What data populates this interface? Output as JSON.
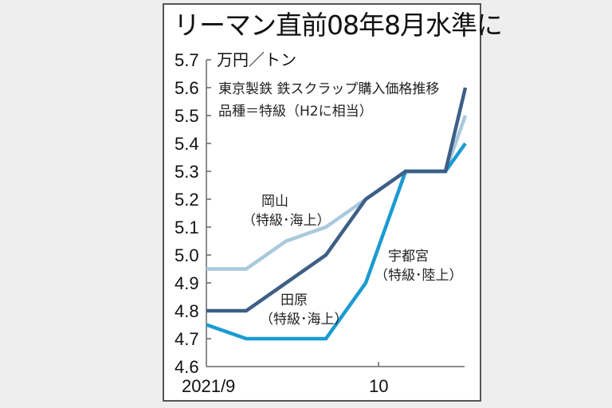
{
  "title": "リーマン直前08年8月水準に",
  "unit_label": "万円／トン",
  "note_line1": "東京製鉄 鉄スクラップ購入価格推移",
  "note_line2": "品種＝特級（H2に相当）",
  "series_labels": {
    "okayama_name": "岡山",
    "okayama_sub": "（特級･海上）",
    "tahara_name": "田原",
    "tahara_sub": "（特級･海上）",
    "utsunomiya_name": "宇都宮",
    "utsunomiya_sub": "（特級･陸上）"
  },
  "x_tick_labels": [
    "2021/9",
    "10"
  ],
  "y_tick_labels": [
    "5.7",
    "5.6",
    "5.5",
    "5.4",
    "5.3",
    "5.2",
    "5.1",
    "5.0",
    "4.9",
    "4.8",
    "4.7",
    "4.6"
  ],
  "colors": {
    "okayama": "#a9c9dc",
    "tahara": "#3e5f86",
    "utsunomiya": "#1a9bd1",
    "axis": "#666666",
    "frame": "#555555",
    "background": "#eeeeee"
  },
  "chart_data": {
    "type": "line",
    "title": "リーマン直前08年8月水準に",
    "subtitle": "東京製鉄 鉄スクラップ購入価格推移 品種＝特級（H2に相当）",
    "xlabel": "",
    "ylabel": "万円／トン",
    "ylim": [
      4.6,
      5.7
    ],
    "yticks": [
      4.6,
      4.7,
      4.8,
      4.9,
      5.0,
      5.1,
      5.2,
      5.3,
      5.4,
      5.5,
      5.6,
      5.7
    ],
    "x_tick_labels": [
      "2021/9",
      "10"
    ],
    "grid": false,
    "legend": "inline labels",
    "x": [
      0,
      1,
      2,
      3,
      4,
      5,
      6,
      7
    ],
    "series": [
      {
        "name": "岡山（特級･海上）",
        "values": [
          4.95,
          4.95,
          5.05,
          5.1,
          5.2,
          5.3,
          5.3,
          5.5
        ]
      },
      {
        "name": "田原（特級･海上）",
        "values": [
          4.8,
          4.8,
          4.9,
          5.0,
          5.2,
          5.3,
          5.3,
          5.6
        ]
      },
      {
        "name": "宇都宮（特級･陸上）",
        "values": [
          4.75,
          4.7,
          4.7,
          4.7,
          4.9,
          5.3,
          5.3,
          5.4
        ]
      }
    ]
  }
}
